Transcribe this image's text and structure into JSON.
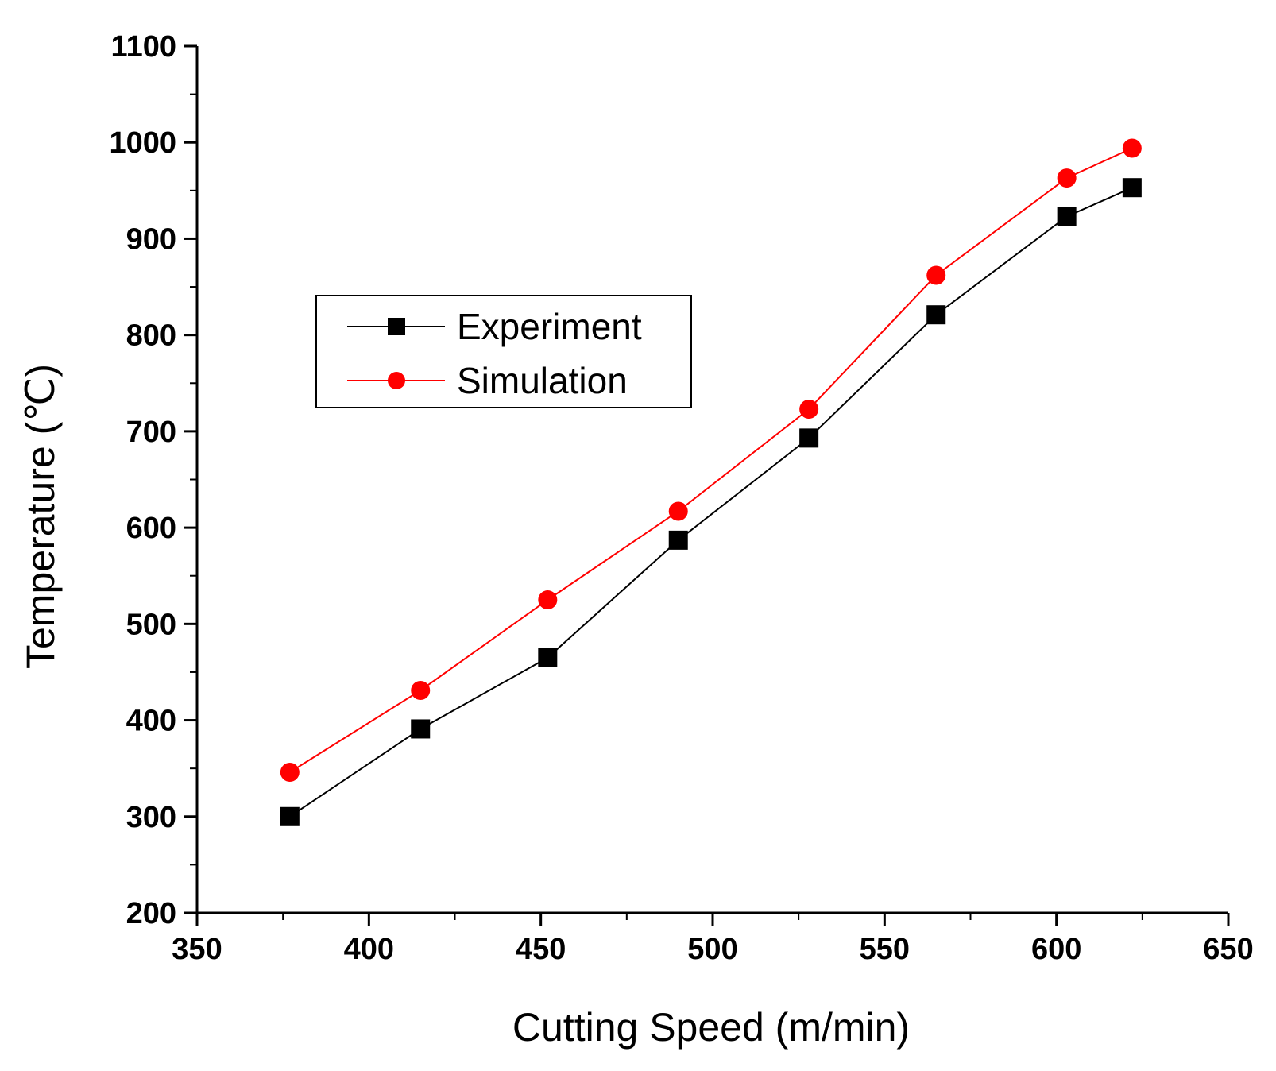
{
  "chart_data": {
    "type": "line",
    "title": "",
    "xlabel": "Cutting Speed (m/min)",
    "ylabel": "Temperature (℃)",
    "xlim": [
      350,
      650
    ],
    "ylim": [
      200,
      1100
    ],
    "xticks": [
      350,
      400,
      450,
      500,
      550,
      600,
      650
    ],
    "yticks": [
      200,
      300,
      400,
      500,
      600,
      700,
      800,
      900,
      1000,
      1100
    ],
    "x_minor_step": 25,
    "y_minor_step": 50,
    "grid": false,
    "legend_position": "upper-left",
    "x": [
      377,
      415,
      452,
      490,
      528,
      565,
      603,
      622
    ],
    "series": [
      {
        "name": "Experiment",
        "color": "#000000",
        "marker": "square",
        "values": [
          300,
          391,
          465,
          587,
          693,
          821,
          923,
          953
        ]
      },
      {
        "name": "Simulation",
        "color": "#ff0000",
        "marker": "circle",
        "values": [
          346,
          431,
          525,
          617,
          723,
          862,
          963,
          994
        ]
      }
    ]
  }
}
